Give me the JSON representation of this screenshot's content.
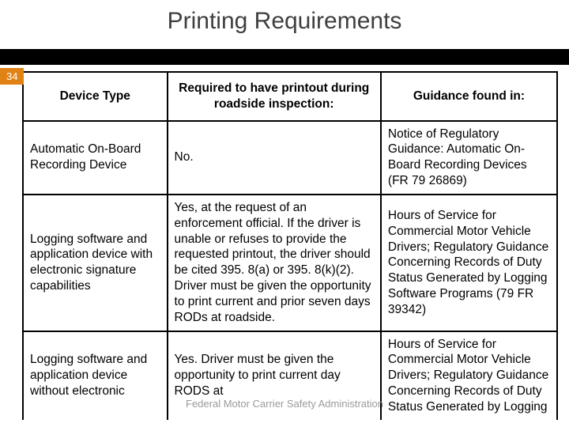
{
  "title": "Printing Requirements",
  "page_number": "34",
  "footer": "Federal Motor Carrier Safety Administration",
  "table": {
    "headers": [
      "Device Type",
      "Required to have printout during roadside inspection:",
      "Guidance found in:"
    ],
    "rows": [
      [
        "Automatic On-Board Recording Device",
        "No.",
        "Notice of Regulatory Guidance: Automatic On-Board Recording Devices (FR 79 26869)"
      ],
      [
        "Logging software and application device with electronic signature capabilities",
        "Yes, at the request of an enforcement official. If the driver is unable or refuses to provide the requested printout, the driver should be cited 395. 8(a) or 395. 8(k)(2). Driver must be given the opportunity to print current and prior seven days RODs at roadside.",
        "Hours of Service for Commercial Motor Vehicle Drivers; Regulatory Guidance Concerning Records of Duty Status Generated by Logging Software Programs (79 FR 39342)"
      ],
      [
        "Logging software and application device without electronic",
        "Yes.\nDriver must be given the opportunity to print current day RODS at",
        "Hours of Service for Commercial Motor Vehicle Drivers; Regulatory Guidance Concerning Records of Duty Status Generated by Logging"
      ]
    ]
  },
  "styling": {
    "title_color": "#3f3f3f",
    "title_fontsize": 30,
    "badge_bg": "#e08214",
    "badge_fg": "#ffffff",
    "bar_bg": "#000000",
    "border_color": "#000000",
    "body_fontsize": 15.5,
    "footer_color": "#9a9a9a"
  }
}
